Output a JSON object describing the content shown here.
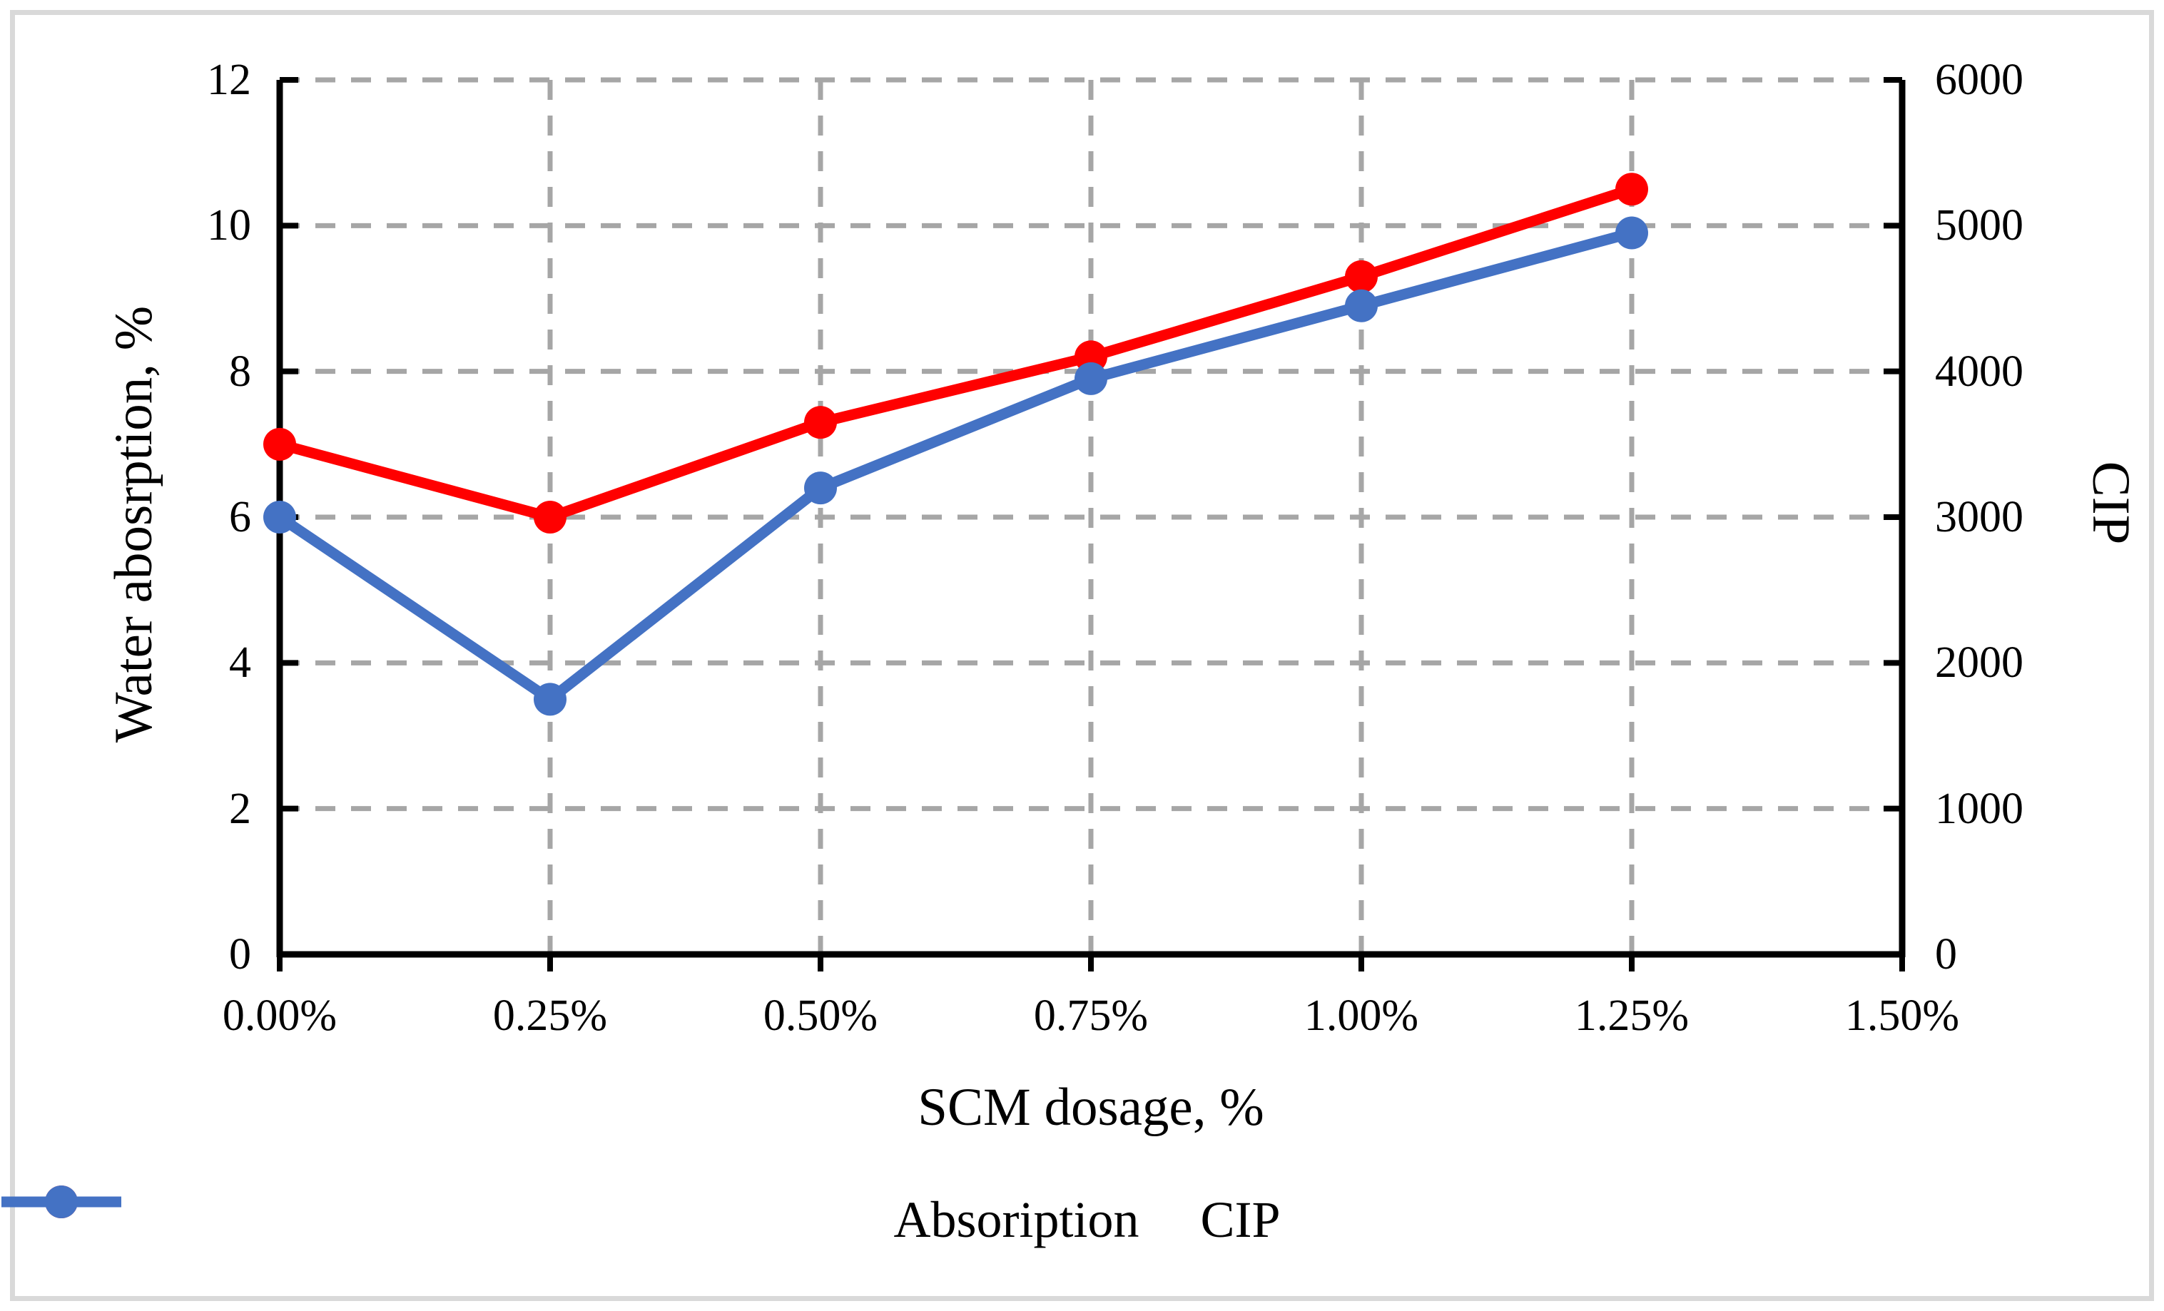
{
  "figure": {
    "background": "#ffffff",
    "border_color": "#d9d9d9"
  },
  "chart_data": {
    "type": "line",
    "title": "",
    "x_axis": {
      "label": "SCM dosage, %",
      "tick_labels": [
        "0.00%",
        "0.25%",
        "0.50%",
        "0.75%",
        "1.00%",
        "1.25%",
        "1.50%"
      ]
    },
    "y_axis_left": {
      "label": "Water abosrption, %",
      "min": 0,
      "max": 12,
      "step": 2,
      "tick_labels": [
        "0",
        "2",
        "4",
        "6",
        "8",
        "10",
        "12"
      ]
    },
    "y_axis_right": {
      "label": "CIP",
      "min": 0,
      "max": 6000,
      "step": 1000,
      "tick_labels": [
        "0",
        "1000",
        "2000",
        "3000",
        "4000",
        "5000",
        "6000"
      ]
    },
    "categories": [
      "0.00%",
      "0.25%",
      "0.50%",
      "0.75%",
      "1.00%",
      "1.25%"
    ],
    "series": [
      {
        "name": "Absoription",
        "axis": "left",
        "color": "#ff0000",
        "values": [
          7.0,
          6.0,
          7.3,
          8.2,
          9.3,
          10.5
        ]
      },
      {
        "name": "CIP",
        "axis": "right",
        "color": "#4472c4",
        "values": [
          3000,
          1750,
          3200,
          3950,
          4450,
          4950
        ]
      }
    ],
    "grid": true,
    "grid_style": "dashed",
    "gridline_color": "#a6a6a6",
    "axis_color": "#000000",
    "legend_position": "bottom"
  },
  "legend": {
    "items": [
      {
        "label": "Absoription",
        "color": "#ff0000"
      },
      {
        "label": "CIP",
        "color": "#4472c4"
      }
    ]
  }
}
